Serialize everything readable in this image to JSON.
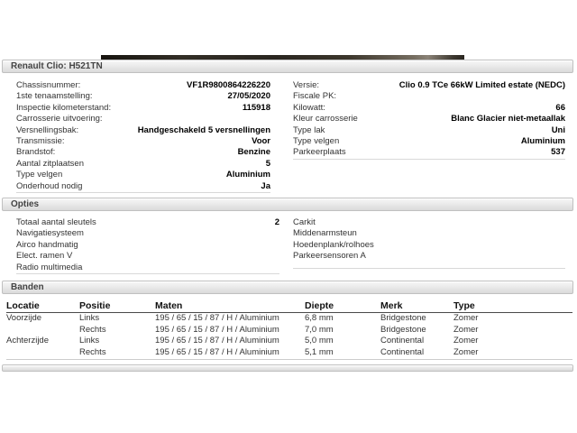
{
  "title_bar": {
    "text": "Renault Clio: H521TN"
  },
  "vehicle_info": {
    "left": [
      {
        "label": "Chassisnummer:",
        "value": "VF1R9800864226220"
      },
      {
        "label": "1ste tenaamstelling:",
        "value": "27/05/2020"
      },
      {
        "label": "Inspectie kilometerstand:",
        "value": "115918"
      },
      {
        "label": "Carrosserie uitvoering:",
        "value": ""
      },
      {
        "label": "Versnellingsbak:",
        "value": "Handgeschakeld 5 versnellingen"
      },
      {
        "label": "Transmissie:",
        "value": "Voor"
      },
      {
        "label": "Brandstof:",
        "value": "Benzine"
      },
      {
        "label": "Aantal zitplaatsen",
        "value": "5"
      },
      {
        "label": "Type velgen",
        "value": "Aluminium"
      },
      {
        "label": "Onderhoud nodig",
        "value": "Ja"
      }
    ],
    "right": [
      {
        "label": "Versie:",
        "value": "Clio 0.9 TCe 66kW Limited estate (NEDC)"
      },
      {
        "label": "Fiscale PK:",
        "value": ""
      },
      {
        "label": "Kilowatt:",
        "value": "66"
      },
      {
        "label": "Kleur carrosserie",
        "value": "Blanc Glacier niet-metaallak"
      },
      {
        "label": "Type lak",
        "value": "Uni"
      },
      {
        "label": "Type velgen",
        "value": "Aluminium"
      },
      {
        "label": "Parkeerplaats",
        "value": "537"
      }
    ]
  },
  "opties": {
    "title": "Opties",
    "left": [
      {
        "label": "Totaal aantal sleutels",
        "value": "2"
      },
      {
        "label": "Navigatiesysteem",
        "value": ""
      },
      {
        "label": "Airco handmatig",
        "value": ""
      },
      {
        "label": "Elect. ramen V",
        "value": ""
      },
      {
        "label": "Radio multimedia",
        "value": ""
      }
    ],
    "right": [
      {
        "label": "Carkit",
        "value": ""
      },
      {
        "label": "Middenarmsteun",
        "value": ""
      },
      {
        "label": "Hoedenplank/rolhoes",
        "value": ""
      },
      {
        "label": "Parkeersensoren A",
        "value": ""
      }
    ]
  },
  "banden": {
    "title": "Banden",
    "columns": [
      "Locatie",
      "Positie",
      "Maten",
      "Diepte",
      "Merk",
      "Type"
    ],
    "rows": [
      [
        "Voorzijde",
        "Links",
        "195 / 65 / 15 / 87 / H / Aluminium",
        "6,8 mm",
        "Bridgestone",
        "Zomer"
      ],
      [
        "",
        "Rechts",
        "195 / 65 / 15 / 87 / H / Aluminium",
        "7,0 mm",
        "Bridgestone",
        "Zomer"
      ],
      [
        "Achterzijde",
        "Links",
        "195 / 65 / 15 / 87 / H / Aluminium",
        "5,0 mm",
        "Continental",
        "Zomer"
      ],
      [
        "",
        "Rechts",
        "195 / 65 / 15 / 87 / H / Aluminium",
        "5,1 mm",
        "Continental",
        "Zomer"
      ]
    ]
  },
  "colors": {
    "section_bar_top": "#f8f8f8",
    "section_bar_bottom": "#dadada",
    "section_bar_border": "#c0c0c0",
    "label_text": "#333333",
    "value_text": "#000000",
    "photo_strip_dark": "#2a2620"
  }
}
